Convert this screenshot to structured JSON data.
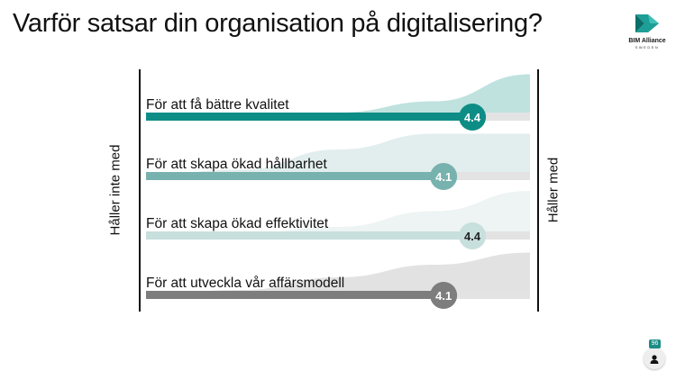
{
  "title": "Varför satsar din organisation på digitalisering?",
  "logo": {
    "name": "BIM Alliance",
    "sub": "SWEDEN"
  },
  "participants": {
    "count": "96",
    "icon": "person-icon"
  },
  "chart_data": {
    "type": "bar",
    "scale_labels": {
      "left": "Håller inte med",
      "right": "Håller med"
    },
    "xlim": [
      1,
      5
    ],
    "items": [
      {
        "label": "För att få bättre kvalitet",
        "value": 4.4,
        "value_label": "4.4",
        "color": "#0e8d86",
        "dist_color": "#bfe2df",
        "dist": [
          0.02,
          0.04,
          0.1,
          0.35,
          0.95
        ]
      },
      {
        "label": "För att skapa ökad hållbarhet",
        "value": 4.1,
        "value_label": "4.1",
        "color": "#78b2ae",
        "dist_color": "#e1eeed",
        "dist": [
          0.05,
          0.15,
          0.6,
          0.95,
          0.95
        ]
      },
      {
        "label": "För att skapa ökad effektivitet",
        "value": 4.4,
        "value_label": "4.4",
        "color": "#c7dfdd",
        "dist_color": "#edf4f3",
        "dist": [
          0.02,
          0.05,
          0.2,
          0.55,
          1.0
        ]
      },
      {
        "label": "För att utveckla vår affärsmodell",
        "value": 4.1,
        "value_label": "4.1",
        "color": "#7d7d7d",
        "dist_color": "#e2e2e2",
        "dist": [
          0.03,
          0.12,
          0.4,
          0.68,
          0.95
        ]
      }
    ]
  }
}
